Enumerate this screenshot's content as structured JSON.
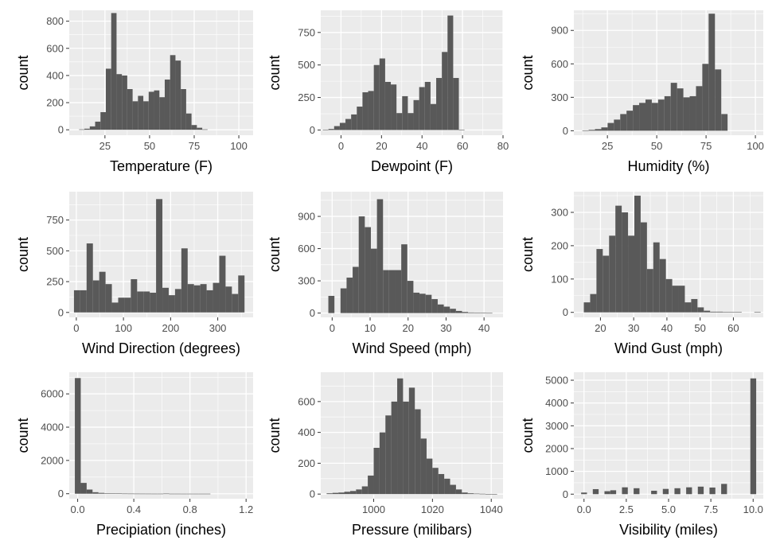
{
  "colors": {
    "panel_background": "#ebebeb",
    "grid_major": "#ffffff",
    "bar_fill": "#595959",
    "tick_text": "#4d4d4d",
    "axis_text": "#000000"
  },
  "chart_data": [
    {
      "type": "bar",
      "xlabel": "Temperature (F)",
      "ylabel": "count",
      "xlim": [
        5,
        108
      ],
      "ylim": [
        -40,
        880
      ],
      "xticks": [
        25,
        50,
        75,
        100
      ],
      "yticks": [
        0,
        200,
        400,
        600,
        800
      ],
      "bin_start": 10.5,
      "bin_width": 3,
      "values": [
        3,
        8,
        25,
        60,
        130,
        450,
        860,
        410,
        400,
        300,
        210,
        250,
        210,
        280,
        290,
        240,
        370,
        550,
        510,
        300,
        120,
        35,
        15,
        3
      ],
      "grid": true
    },
    {
      "type": "bar",
      "xlabel": "Dewpoint (F)",
      "ylabel": "count",
      "xlim": [
        -10,
        80
      ],
      "ylim": [
        -40,
        920
      ],
      "xticks": [
        0,
        20,
        40,
        60,
        80
      ],
      "yticks": [
        0,
        250,
        500,
        750
      ],
      "bin_start": -9,
      "bin_width": 2.8,
      "values": [
        3,
        8,
        30,
        55,
        85,
        120,
        180,
        290,
        300,
        500,
        550,
        370,
        350,
        130,
        260,
        130,
        230,
        330,
        370,
        200,
        400,
        600,
        880,
        400,
        3
      ],
      "grid": true
    },
    {
      "type": "bar",
      "xlabel": "Humidity (%)",
      "ylabel": "count",
      "xlim": [
        8,
        104
      ],
      "ylim": [
        -40,
        1080
      ],
      "xticks": [
        25,
        50,
        75,
        100
      ],
      "yticks": [
        0,
        300,
        600,
        900
      ],
      "bin_start": 12.3,
      "bin_width": 3.2,
      "values": [
        3,
        8,
        15,
        30,
        70,
        100,
        150,
        180,
        230,
        250,
        280,
        250,
        280,
        310,
        430,
        380,
        300,
        310,
        400,
        600,
        1050,
        550,
        150
      ],
      "grid": true
    },
    {
      "type": "bar",
      "xlabel": "Wind Direction (degrees)",
      "ylabel": "count",
      "xlim": [
        -15,
        375
      ],
      "ylim": [
        -40,
        980
      ],
      "xticks": [
        0,
        100,
        200,
        300
      ],
      "yticks": [
        0,
        250,
        500,
        750
      ],
      "bin_start": -5,
      "bin_width": 13.4,
      "values": [
        180,
        180,
        560,
        260,
        330,
        230,
        80,
        120,
        120,
        270,
        170,
        170,
        160,
        920,
        200,
        140,
        190,
        520,
        230,
        220,
        230,
        180,
        240,
        460,
        210,
        150,
        300
      ],
      "grid": true
    },
    {
      "type": "bar",
      "xlabel": "Wind Speed (mph)",
      "ylabel": "count",
      "xlim": [
        -3,
        45
      ],
      "ylim": [
        -40,
        1130
      ],
      "xticks": [
        0,
        10,
        20,
        30,
        40
      ],
      "yticks": [
        0,
        300,
        600,
        900
      ],
      "bin_start": -1,
      "bin_width": 1.6,
      "values": [
        160,
        0,
        230,
        330,
        430,
        900,
        800,
        600,
        1060,
        400,
        400,
        400,
        640,
        300,
        190,
        180,
        170,
        130,
        80,
        60,
        40,
        20,
        10,
        5,
        3,
        2,
        1
      ],
      "grid": true
    },
    {
      "type": "bar",
      "xlabel": "Wind Gust (mph)",
      "ylabel": "count",
      "xlim": [
        12,
        69
      ],
      "ylim": [
        -15,
        362
      ],
      "xticks": [
        20,
        30,
        40,
        50,
        60
      ],
      "yticks": [
        0,
        100,
        200,
        300
      ],
      "bin_start": 15,
      "bin_width": 1.9,
      "values": [
        30,
        55,
        190,
        170,
        230,
        320,
        300,
        230,
        350,
        270,
        130,
        210,
        160,
        100,
        80,
        80,
        30,
        40,
        15,
        5,
        2,
        2,
        1,
        1,
        1,
        0,
        0,
        1
      ],
      "grid": true
    },
    {
      "type": "bar",
      "xlabel": "Precipiation (inches)",
      "ylabel": "count",
      "xlim": [
        -0.06,
        1.25
      ],
      "ylim": [
        -300,
        7300
      ],
      "xticks": [
        0.0,
        0.4,
        0.8,
        1.2
      ],
      "xtick_labels": [
        "0.0",
        "0.4",
        "0.8",
        "1.2"
      ],
      "yticks": [
        0,
        2000,
        4000,
        6000
      ],
      "bin_start": -0.02,
      "bin_width": 0.042,
      "values": [
        6950,
        650,
        250,
        90,
        50,
        30,
        20,
        15,
        10,
        8,
        6,
        5,
        4,
        3,
        3,
        10,
        2,
        2,
        1,
        1,
        1,
        1,
        1,
        0,
        0,
        0,
        0,
        0,
        0
      ],
      "grid": true
    },
    {
      "type": "bar",
      "xlabel": "Pressure (milibars)",
      "ylabel": "count",
      "xlim": [
        982,
        1044
      ],
      "ylim": [
        -30,
        790
      ],
      "xticks": [
        1000,
        1020,
        1040
      ],
      "yticks": [
        0,
        200,
        400,
        600
      ],
      "bin_start": 984,
      "bin_width": 2,
      "values": [
        5,
        8,
        10,
        15,
        20,
        30,
        50,
        120,
        300,
        400,
        510,
        600,
        750,
        600,
        690,
        550,
        360,
        230,
        170,
        130,
        100,
        60,
        30,
        10,
        5,
        3,
        2,
        1,
        1
      ],
      "grid": true
    },
    {
      "type": "bar",
      "xlabel": "Visibility (miles)",
      "ylabel": "count",
      "xlim": [
        -0.6,
        10.6
      ],
      "ylim": [
        -200,
        5350
      ],
      "xticks": [
        0.0,
        2.5,
        5.0,
        7.5,
        10.0
      ],
      "xtick_labels": [
        "0.0",
        "2.5",
        "5.0",
        "7.5",
        "10.0"
      ],
      "yticks": [
        0,
        1000,
        2000,
        3000,
        4000,
        5000
      ],
      "bin_start": -0.17,
      "bin_width": 0.345,
      "values": [
        70,
        0,
        220,
        0,
        130,
        170,
        0,
        300,
        0,
        260,
        0,
        0,
        150,
        0,
        230,
        0,
        260,
        0,
        300,
        0,
        330,
        0,
        290,
        0,
        450,
        0,
        0,
        0,
        0,
        5080
      ],
      "grid": true
    }
  ]
}
